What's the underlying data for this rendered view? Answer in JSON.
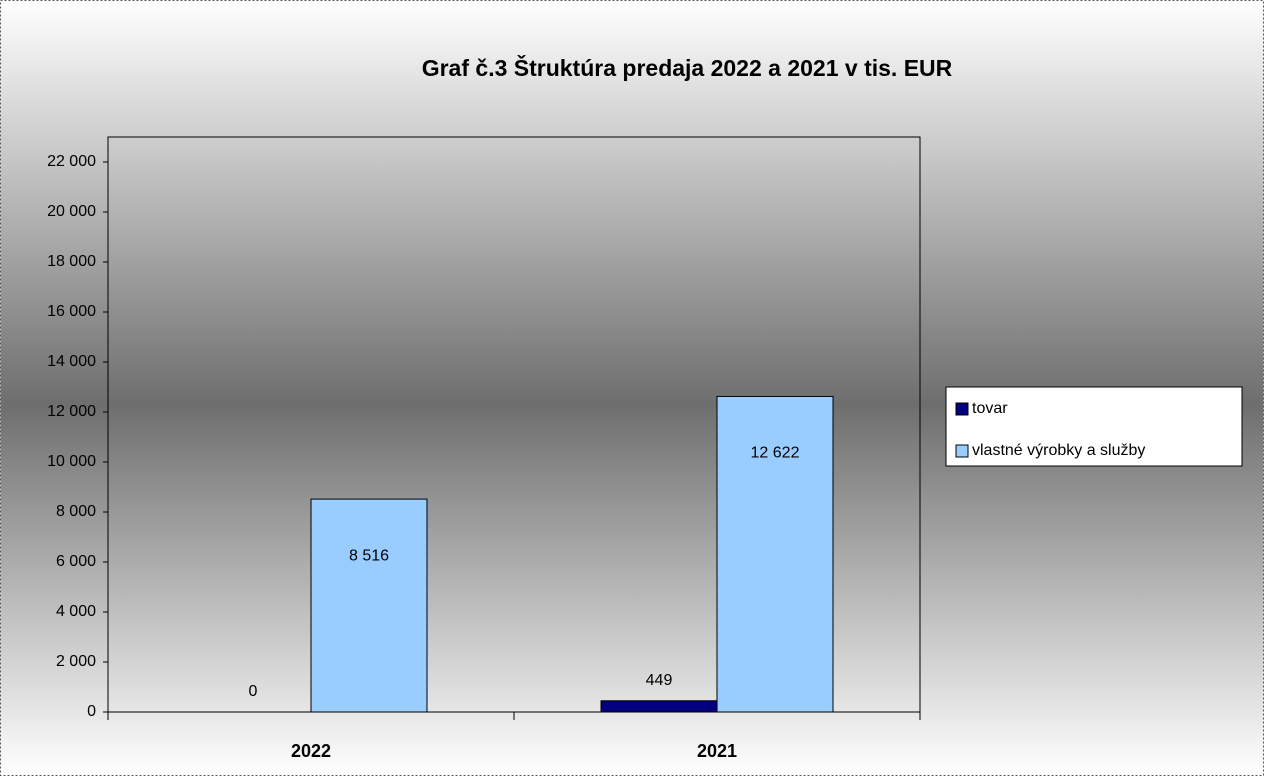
{
  "chart_data": {
    "type": "bar",
    "title": "Graf č.3 Štruktúra predaja 2022 a 2021 v tis. EUR",
    "categories": [
      "2022",
      "2021"
    ],
    "series": [
      {
        "name": "tovar",
        "color": "#000080",
        "values": [
          0,
          449
        ],
        "value_labels": [
          "0",
          "449"
        ]
      },
      {
        "name": "vlastné výrobky a služby",
        "color": "#99ccff",
        "values": [
          8516,
          12622
        ],
        "value_labels": [
          "8 516",
          "12 622"
        ]
      }
    ],
    "ylim": [
      0,
      23000
    ],
    "yticks": [
      0,
      {
        "value": 2000,
        "label": "2 000"
      },
      {
        "value": 4000,
        "label": "4 000"
      },
      {
        "value": 6000,
        "label": "6 000"
      },
      {
        "value": 8000,
        "label": "8 000"
      },
      {
        "value": 10000,
        "label": "10 000"
      },
      {
        "value": 12000,
        "label": "12 000"
      },
      {
        "value": 14000,
        "label": "14 000"
      },
      {
        "value": 16000,
        "label": "16 000"
      },
      {
        "value": 18000,
        "label": "18 000"
      },
      {
        "value": 20000,
        "label": "20 000"
      },
      {
        "value": 22000,
        "label": "22 000"
      }
    ],
    "legend": "right"
  }
}
